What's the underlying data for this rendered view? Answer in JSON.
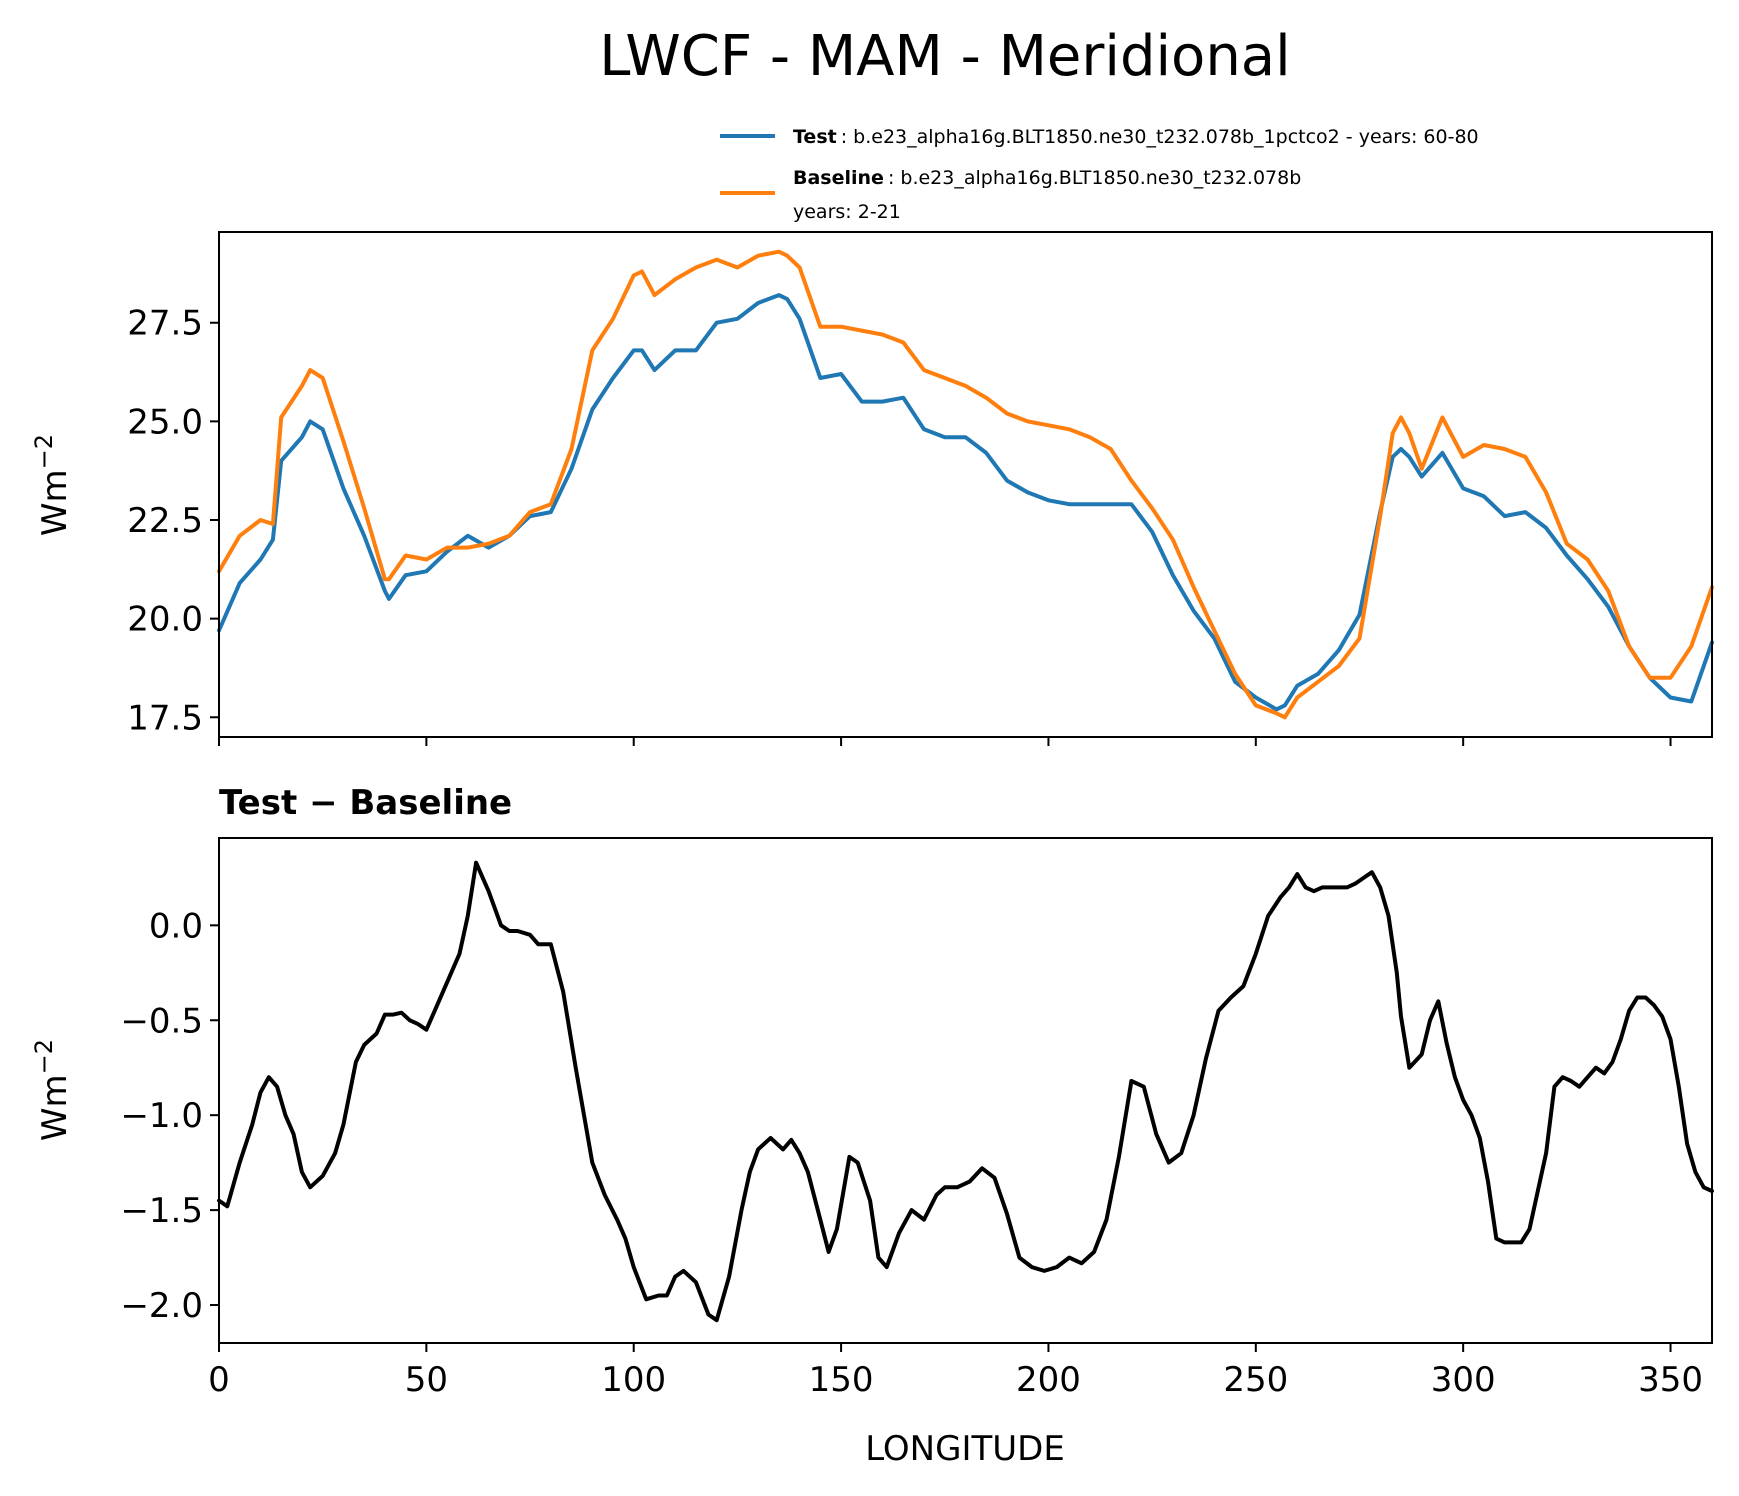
{
  "figure": {
    "title": "LWCF - MAM - Meridional"
  },
  "chart_data": [
    {
      "type": "line",
      "panel": "top",
      "title": "",
      "xlabel": "",
      "ylabel": "Wm",
      "ylabel_sup": "−2",
      "xlim": [
        0,
        360
      ],
      "ylim": [
        17.0,
        29.8
      ],
      "yticks": [
        17.5,
        20.0,
        22.5,
        25.0,
        27.5
      ],
      "ytick_labels": [
        "17.5",
        "20.0",
        "22.5",
        "25.0",
        "27.5"
      ],
      "xticks": [
        0,
        50,
        100,
        150,
        200,
        250,
        300,
        350
      ],
      "x": [
        0,
        5,
        10,
        13,
        15,
        20,
        22,
        25,
        30,
        35,
        40,
        41,
        45,
        50,
        55,
        60,
        65,
        70,
        75,
        80,
        85,
        90,
        95,
        100,
        102,
        105,
        110,
        115,
        120,
        125,
        130,
        135,
        137,
        140,
        145,
        150,
        155,
        160,
        165,
        170,
        175,
        180,
        185,
        190,
        195,
        200,
        205,
        210,
        215,
        220,
        225,
        230,
        235,
        240,
        245,
        250,
        255,
        257,
        260,
        265,
        270,
        275,
        280,
        283,
        285,
        287,
        290,
        295,
        300,
        305,
        310,
        315,
        320,
        325,
        330,
        335,
        340,
        345,
        350,
        355,
        360
      ],
      "legend": [
        {
          "name_bold": "Test",
          "name_rest": ": b.e23_alpha16g.BLT1850.ne30_t232.078b_1pctco2 - years: 60-80",
          "color": "#1f77b4"
        },
        {
          "name_bold": "Baseline",
          "name_rest": ": b.e23_alpha16g.BLT1850.ne30_t232.078b",
          "line2": "years: 2-21",
          "color": "#ff7f0e"
        }
      ],
      "series": [
        {
          "name": "Test",
          "color": "#1f77b4",
          "values": [
            19.7,
            20.9,
            21.5,
            22.0,
            24.0,
            24.6,
            25.0,
            24.8,
            23.3,
            22.1,
            20.7,
            20.5,
            21.1,
            21.2,
            21.7,
            22.1,
            21.8,
            22.1,
            22.6,
            22.7,
            23.8,
            25.3,
            26.1,
            26.8,
            26.8,
            26.3,
            26.8,
            26.8,
            27.5,
            27.6,
            28.0,
            28.2,
            28.1,
            27.6,
            26.1,
            26.2,
            25.5,
            25.5,
            25.6,
            24.8,
            24.6,
            24.6,
            24.2,
            23.5,
            23.2,
            23.0,
            22.9,
            22.9,
            22.9,
            22.9,
            22.2,
            21.1,
            20.2,
            19.5,
            18.4,
            18.0,
            17.7,
            17.8,
            18.3,
            18.6,
            19.2,
            20.1,
            22.7,
            24.1,
            24.3,
            24.1,
            23.6,
            24.2,
            23.3,
            23.1,
            22.6,
            22.7,
            22.3,
            21.6,
            21.0,
            20.3,
            19.3,
            18.5,
            18.0,
            17.9,
            19.4
          ]
        },
        {
          "name": "Baseline",
          "color": "#ff7f0e",
          "values": [
            21.2,
            22.1,
            22.5,
            22.4,
            25.1,
            25.9,
            26.3,
            26.1,
            24.5,
            22.8,
            21.0,
            21.0,
            21.6,
            21.5,
            21.8,
            21.8,
            21.9,
            22.1,
            22.7,
            22.9,
            24.3,
            26.8,
            27.6,
            28.7,
            28.8,
            28.2,
            28.6,
            28.9,
            29.1,
            28.9,
            29.2,
            29.3,
            29.2,
            28.9,
            27.4,
            27.4,
            27.3,
            27.2,
            27.0,
            26.3,
            26.1,
            25.9,
            25.6,
            25.2,
            25.0,
            24.9,
            24.8,
            24.6,
            24.3,
            23.5,
            22.8,
            22.0,
            20.8,
            19.7,
            18.6,
            17.8,
            17.6,
            17.5,
            18.0,
            18.4,
            18.8,
            19.5,
            22.6,
            24.7,
            25.1,
            24.7,
            23.8,
            25.1,
            24.1,
            24.4,
            24.3,
            24.1,
            23.2,
            21.9,
            21.5,
            20.7,
            19.3,
            18.5,
            18.5,
            19.3,
            20.8
          ]
        }
      ]
    },
    {
      "type": "line",
      "panel": "bottom",
      "title": "Test − Baseline",
      "xlabel": "LONGITUDE",
      "ylabel": "Wm",
      "ylabel_sup": "−2",
      "xlim": [
        0,
        360
      ],
      "ylim": [
        -2.2,
        0.46
      ],
      "yticks": [
        -2.0,
        -1.5,
        -1.0,
        -0.5,
        0.0
      ],
      "ytick_labels": [
        "−2.0",
        "−1.5",
        "−1.0",
        "−0.5",
        "0.0"
      ],
      "xticks": [
        0,
        50,
        100,
        150,
        200,
        250,
        300,
        350
      ],
      "xtick_labels": [
        "0",
        "50",
        "100",
        "150",
        "200",
        "250",
        "300",
        "350"
      ],
      "x": [
        0,
        2,
        5,
        8,
        10,
        12,
        14,
        16,
        18,
        20,
        22,
        25,
        28,
        30,
        33,
        35,
        38,
        40,
        42,
        44,
        46,
        48,
        50,
        52,
        55,
        58,
        60,
        62,
        65,
        68,
        70,
        72,
        75,
        77,
        80,
        83,
        86,
        90,
        93,
        96,
        98,
        100,
        103,
        106,
        108,
        110,
        112,
        115,
        118,
        120,
        123,
        126,
        128,
        130,
        133,
        136,
        138,
        140,
        142,
        145,
        147,
        149,
        152,
        154,
        157,
        159,
        161,
        164,
        167,
        170,
        173,
        175,
        178,
        181,
        184,
        187,
        190,
        193,
        196,
        199,
        202,
        205,
        208,
        211,
        214,
        217,
        220,
        223,
        226,
        229,
        232,
        235,
        238,
        241,
        244,
        247,
        250,
        253,
        256,
        258,
        260,
        262,
        264,
        266,
        268,
        270,
        272,
        274,
        276,
        278,
        280,
        282,
        284,
        285,
        287,
        290,
        292,
        294,
        296,
        298,
        300,
        302,
        304,
        306,
        308,
        310,
        312,
        314,
        316,
        318,
        320,
        322,
        324,
        326,
        328,
        330,
        332,
        334,
        336,
        338,
        340,
        342,
        344,
        346,
        348,
        350,
        352,
        354,
        356,
        358,
        360
      ],
      "series": [
        {
          "name": "Test − Baseline",
          "color": "#000000",
          "values": [
            -1.45,
            -1.48,
            -1.25,
            -1.05,
            -0.88,
            -0.8,
            -0.85,
            -1.0,
            -1.1,
            -1.3,
            -1.38,
            -1.32,
            -1.2,
            -1.05,
            -0.72,
            -0.63,
            -0.57,
            -0.47,
            -0.47,
            -0.46,
            -0.5,
            -0.52,
            -0.55,
            -0.45,
            -0.3,
            -0.15,
            0.05,
            0.33,
            0.18,
            0.0,
            -0.03,
            -0.03,
            -0.05,
            -0.1,
            -0.1,
            -0.35,
            -0.75,
            -1.25,
            -1.42,
            -1.55,
            -1.65,
            -1.8,
            -1.97,
            -1.95,
            -1.95,
            -1.85,
            -1.82,
            -1.88,
            -2.05,
            -2.08,
            -1.85,
            -1.5,
            -1.3,
            -1.18,
            -1.12,
            -1.18,
            -1.13,
            -1.2,
            -1.3,
            -1.55,
            -1.72,
            -1.6,
            -1.22,
            -1.25,
            -1.45,
            -1.75,
            -1.8,
            -1.62,
            -1.5,
            -1.55,
            -1.42,
            -1.38,
            -1.38,
            -1.35,
            -1.28,
            -1.33,
            -1.52,
            -1.75,
            -1.8,
            -1.82,
            -1.8,
            -1.75,
            -1.78,
            -1.72,
            -1.55,
            -1.22,
            -0.82,
            -0.85,
            -1.1,
            -1.25,
            -1.2,
            -1.0,
            -0.7,
            -0.45,
            -0.38,
            -0.32,
            -0.15,
            0.05,
            0.15,
            0.2,
            0.27,
            0.2,
            0.18,
            0.2,
            0.2,
            0.2,
            0.2,
            0.22,
            0.25,
            0.28,
            0.2,
            0.05,
            -0.25,
            -0.48,
            -0.75,
            -0.68,
            -0.5,
            -0.4,
            -0.62,
            -0.8,
            -0.92,
            -1.0,
            -1.12,
            -1.35,
            -1.65,
            -1.67,
            -1.67,
            -1.67,
            -1.6,
            -1.4,
            -1.2,
            -0.85,
            -0.8,
            -0.82,
            -0.85,
            -0.8,
            -0.75,
            -0.78,
            -0.72,
            -0.6,
            -0.45,
            -0.38,
            -0.38,
            -0.42,
            -0.48,
            -0.6,
            -0.85,
            -1.15,
            -1.3,
            -1.38,
            -1.4
          ]
        }
      ]
    }
  ]
}
